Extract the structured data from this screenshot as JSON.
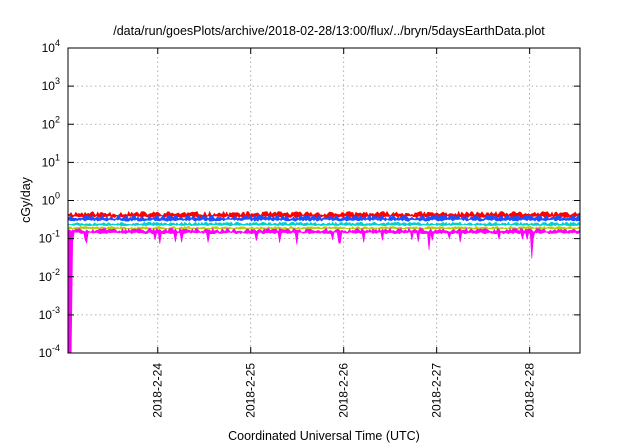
{
  "chart_data": {
    "type": "area",
    "title": "/data/run/goesPlots/archive/2018-02-28/13:00/flux/../bryn/5daysEarthData.plot",
    "xlabel": "Coordinated Universal Time (UTC)",
    "ylabel": "cGy/day",
    "yscale": "log",
    "ylim": [
      0.0001,
      10000
    ],
    "y_ticks": [
      {
        "value": 0.0001,
        "base": "10",
        "exp": "-4"
      },
      {
        "value": 0.001,
        "base": "10",
        "exp": "-3"
      },
      {
        "value": 0.01,
        "base": "10",
        "exp": "-2"
      },
      {
        "value": 0.1,
        "base": "10",
        "exp": "-1"
      },
      {
        "value": 1,
        "base": "10",
        "exp": "0"
      },
      {
        "value": 10,
        "base": "10",
        "exp": "1"
      },
      {
        "value": 100,
        "base": "10",
        "exp": "2"
      },
      {
        "value": 1000,
        "base": "10",
        "exp": "3"
      },
      {
        "value": 10000,
        "base": "10",
        "exp": "4"
      }
    ],
    "xlim": [
      "2018-02-23T00:50",
      "2018-02-28T13:00"
    ],
    "x_ticks": [
      "2018-2-24",
      "2018-2-25",
      "2018-2-26",
      "2018-2-27",
      "2018-2-28"
    ],
    "grid": true,
    "series": [
      {
        "color": "#ff0000",
        "mean": 0.42,
        "jitter": 0.06,
        "seed": 11
      },
      {
        "color": "#1e50ff",
        "mean": 0.34,
        "jitter": 0.05,
        "seed": 23
      },
      {
        "color": "#00d0d0",
        "mean": 0.24,
        "jitter": 0.02,
        "seed": 37
      },
      {
        "color": "#b0d000",
        "mean": 0.19,
        "jitter": 0.012,
        "seed": 41
      },
      {
        "color": "#ff00ff",
        "mean": 0.155,
        "jitter": 0.02,
        "seed": 53
      }
    ],
    "annotations": [
      "Magenta series drops to below 1e-4 at the start of the window (2018-02-23 ~01:00-02:00)",
      "Magenta series dips to about 0.03 near 2018-02-28 00:30",
      "Magenta series dips to about 0.05 near 2018-02-26 22:00"
    ]
  }
}
